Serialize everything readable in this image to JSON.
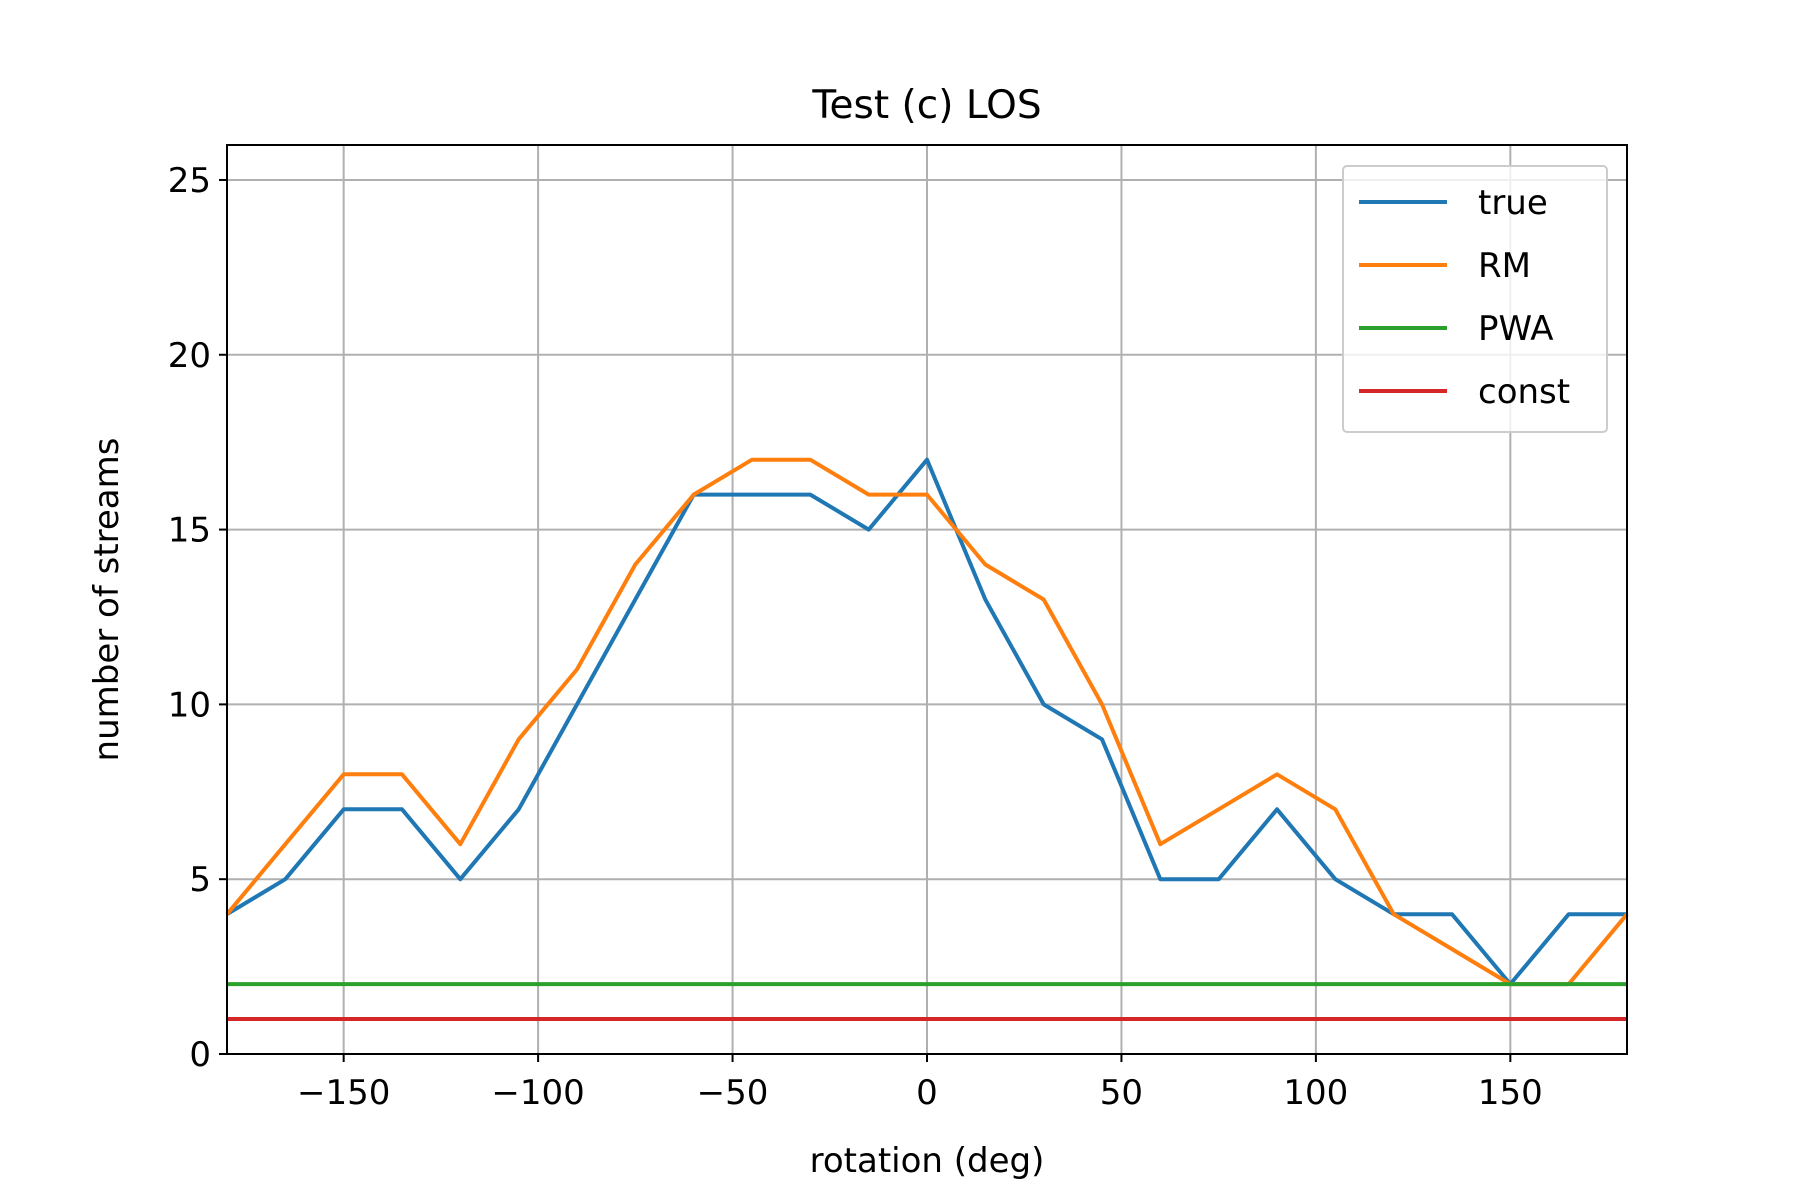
{
  "chart_data": {
    "type": "line",
    "title": "Test (c) LOS",
    "xlabel": "rotation (deg)",
    "ylabel": "number of streams",
    "xlim": [
      -180,
      180
    ],
    "ylim": [
      0,
      26
    ],
    "xticks": [
      -150,
      -100,
      -50,
      0,
      50,
      100,
      150
    ],
    "xtick_labels": [
      "−150",
      "−100",
      "−50",
      "0",
      "50",
      "100",
      "150"
    ],
    "yticks": [
      0,
      5,
      10,
      15,
      20,
      25
    ],
    "ytick_labels": [
      "0",
      "5",
      "10",
      "15",
      "20",
      "25"
    ],
    "grid": true,
    "legend_position": "top-right",
    "x": [
      -180,
      -165,
      -150,
      -135,
      -120,
      -105,
      -90,
      -75,
      -60,
      -45,
      -30,
      -15,
      0,
      15,
      30,
      45,
      60,
      75,
      90,
      105,
      120,
      135,
      150,
      165,
      180
    ],
    "series": [
      {
        "name": "true",
        "color": "#1f77b4",
        "values": [
          4,
          5,
          7,
          7,
          5,
          7,
          10,
          13,
          16,
          16,
          16,
          15,
          17,
          13,
          10,
          9,
          5,
          5,
          7,
          5,
          4,
          4,
          2,
          4,
          4
        ]
      },
      {
        "name": "RM",
        "color": "#ff7f0e",
        "values": [
          4,
          6,
          8,
          8,
          6,
          9,
          11,
          14,
          16,
          17,
          17,
          16,
          16,
          14,
          13,
          10,
          6,
          7,
          8,
          7,
          4,
          3,
          2,
          2,
          4
        ]
      },
      {
        "name": "PWA",
        "color": "#2ca02c",
        "values": [
          2,
          2,
          2,
          2,
          2,
          2,
          2,
          2,
          2,
          2,
          2,
          2,
          2,
          2,
          2,
          2,
          2,
          2,
          2,
          2,
          2,
          2,
          2,
          2,
          2
        ]
      },
      {
        "name": "const",
        "color": "#d62728",
        "values": [
          1,
          1,
          1,
          1,
          1,
          1,
          1,
          1,
          1,
          1,
          1,
          1,
          1,
          1,
          1,
          1,
          1,
          1,
          1,
          1,
          1,
          1,
          1,
          1,
          1
        ]
      }
    ]
  }
}
